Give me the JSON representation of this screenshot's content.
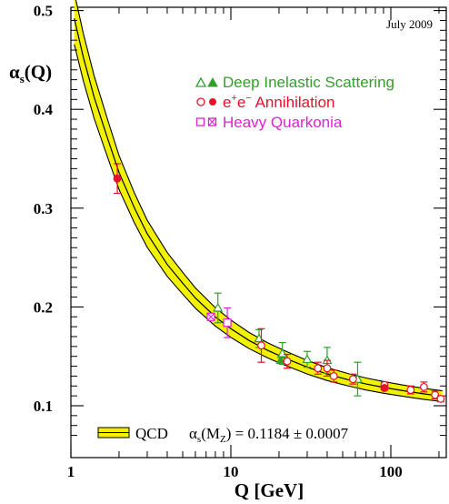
{
  "chart_data": {
    "type": "scatter",
    "date_label": "July 2009",
    "xlabel": "Q [GeV]",
    "ylabel_main": "α",
    "ylabel_sub": "s",
    "ylabel_tail": "(Q)",
    "x_scale": "log",
    "xlim": [
      1,
      210
    ],
    "ylim": [
      0.065,
      0.5
    ],
    "x_ticks": [
      1,
      10,
      100
    ],
    "x_tick_labels": [
      "1",
      "10",
      "100"
    ],
    "y_ticks": [
      0.1,
      0.2,
      0.3,
      0.4,
      0.5
    ],
    "y_tick_labels": [
      "0.1",
      "0.2",
      "0.3",
      "0.4",
      "0.5"
    ],
    "grid": false,
    "legend_position": "top-right",
    "colors": {
      "dis": "#33a02c",
      "ee": "#e8102a",
      "hq": "#e020d8",
      "band_fill": "#f2f200",
      "band_edge": "#000000"
    },
    "legend": [
      {
        "key": "dis",
        "label": "Deep Inelastic Scattering"
      },
      {
        "key": "ee",
        "label_prefix": "e",
        "label_sup1": "+",
        "label_mid": "e",
        "label_sup2": "−",
        "label_suffix": " Annihilation"
      },
      {
        "key": "hq",
        "label": "Heavy Quarkonia"
      }
    ],
    "qcd_label": "QCD",
    "alpha_mz_label_main": "α",
    "alpha_mz_label_sub": "s",
    "alpha_mz_label_mid": "(M",
    "alpha_mz_label_sub2": "Z",
    "alpha_mz_label_tail": ") = 0.1184 ± 0.0007",
    "qcd_curve": {
      "q": [
        1.05,
        1.2,
        1.4,
        1.7,
        2.0,
        2.5,
        3,
        4,
        5,
        6,
        8,
        10,
        13,
        17,
        22,
        30,
        40,
        55,
        70,
        91.2,
        120,
        160,
        210
      ],
      "alpha": [
        0.492,
        0.452,
        0.412,
        0.37,
        0.336,
        0.3,
        0.274,
        0.243,
        0.224,
        0.209,
        0.19,
        0.178,
        0.166,
        0.156,
        0.148,
        0.139,
        0.132,
        0.126,
        0.122,
        0.1184,
        0.1152,
        0.1121,
        0.1096
      ],
      "band_halfwidth": 0.0055
    },
    "series": [
      {
        "name": "Deep Inelastic Scattering",
        "key": "dis",
        "points": [
          {
            "x": 8.3,
            "y": 0.199,
            "err": 0.015,
            "filled": false
          },
          {
            "x": 15,
            "y": 0.168,
            "err": 0.009,
            "filled": false
          },
          {
            "x": 20.5,
            "y": 0.146,
            "err": 0.003,
            "filled": true
          },
          {
            "x": 21,
            "y": 0.153,
            "err": 0.011,
            "filled": false
          },
          {
            "x": 30,
            "y": 0.147,
            "err": 0.008,
            "filled": false
          },
          {
            "x": 40,
            "y": 0.146,
            "err": 0.013,
            "filled": false
          },
          {
            "x": 62,
            "y": 0.127,
            "err": 0.017,
            "filled": false
          }
        ]
      },
      {
        "name": "e+e− Annihilation",
        "key": "ee",
        "points": [
          {
            "x": 1.95,
            "y": 0.33,
            "err": 0.015,
            "filled": true
          },
          {
            "x": 15.5,
            "y": 0.161,
            "err": 0.017,
            "filled": false
          },
          {
            "x": 22.5,
            "y": 0.145,
            "err": 0.007,
            "filled": false
          },
          {
            "x": 35,
            "y": 0.138,
            "err": 0.006,
            "filled": false
          },
          {
            "x": 40,
            "y": 0.138,
            "err": 0.008,
            "filled": false
          },
          {
            "x": 44,
            "y": 0.13,
            "err": 0.006,
            "filled": false
          },
          {
            "x": 58,
            "y": 0.127,
            "err": 0.005,
            "filled": false
          },
          {
            "x": 91.2,
            "y": 0.121,
            "err": 0.003,
            "filled": false
          },
          {
            "x": 91.2,
            "y": 0.118,
            "err": 0.002,
            "filled": true
          },
          {
            "x": 133,
            "y": 0.116,
            "err": 0.004,
            "filled": false
          },
          {
            "x": 161,
            "y": 0.119,
            "err": 0.005,
            "filled": false
          },
          {
            "x": 189,
            "y": 0.111,
            "err": 0.004,
            "filled": false
          },
          {
            "x": 205,
            "y": 0.107,
            "err": 0.003,
            "filled": false
          }
        ]
      },
      {
        "name": "Heavy Quarkonia",
        "key": "hq",
        "points": [
          {
            "x": 7.5,
            "y": 0.19,
            "err": 0.002,
            "filled": true
          },
          {
            "x": 9.5,
            "y": 0.184,
            "err": 0.015,
            "filled": false
          }
        ]
      }
    ]
  }
}
